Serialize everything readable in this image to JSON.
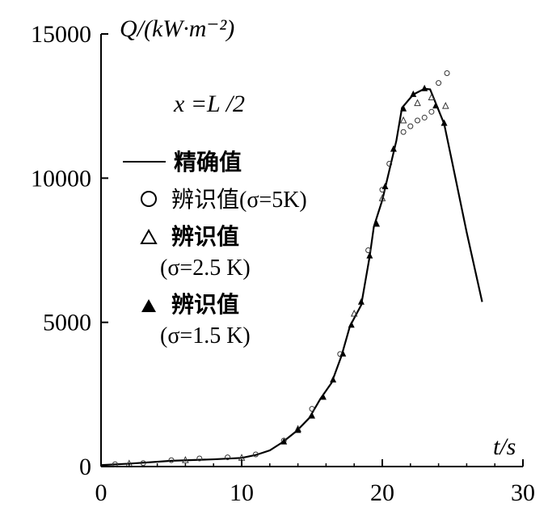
{
  "chart_data": {
    "type": "line",
    "ylabel": "Q/(kW·m⁻²)",
    "xlabel": "t/s",
    "annotation": "x =L /2",
    "xlim": [
      0,
      30
    ],
    "ylim": [
      0,
      15000
    ],
    "xticks": [
      "0",
      "10",
      "20",
      "30"
    ],
    "yticks": [
      "0",
      "5000",
      "10000",
      "15000"
    ],
    "grid": false,
    "legend_placement": "upper-left",
    "series": [
      {
        "name": "精确值",
        "marker": "line",
        "x": [
          0,
          2,
          5,
          8,
          10,
          11,
          12,
          12.9,
          13.9,
          14.8,
          15.6,
          16.4,
          17.1,
          17.7,
          18.5,
          19.1,
          19.4,
          20.0,
          21.0,
          21.4,
          22.2,
          23.0,
          23.4,
          24.4,
          25.0,
          26.0,
          27.1
        ],
        "y": [
          50,
          100,
          200,
          250,
          300,
          400,
          560,
          840,
          1230,
          1680,
          2350,
          2910,
          3840,
          4870,
          5600,
          7280,
          8320,
          9240,
          11300,
          12440,
          12900,
          13100,
          13080,
          11880,
          10480,
          8120,
          5710
        ]
      },
      {
        "name": "辨识值(σ=5K)",
        "marker": "circle",
        "x": [
          1,
          3,
          5,
          7,
          9,
          11,
          13,
          15,
          17,
          19,
          20,
          20.5,
          21.5,
          22,
          22.5,
          23,
          23.5,
          24,
          24.6
        ],
        "y": [
          80,
          120,
          220,
          280,
          320,
          420,
          900,
          2000,
          3900,
          7500,
          9600,
          10500,
          11600,
          11800,
          12000,
          12100,
          12300,
          13300,
          13640
        ]
      },
      {
        "name": "辨识值(σ=2.5 K)",
        "marker": "triangle-open",
        "x": [
          2,
          6,
          10,
          14,
          18,
          20,
          21.5,
          22.5,
          23.5,
          24.5
        ],
        "y": [
          100,
          220,
          300,
          1300,
          5300,
          9300,
          12000,
          12600,
          12800,
          12500
        ]
      },
      {
        "name": "辨识值(σ=1.5 K)",
        "marker": "triangle-filled",
        "x": [
          13,
          14,
          15,
          15.8,
          16.5,
          17.2,
          17.8,
          18.5,
          19.1,
          19.6,
          20.2,
          20.8,
          21.5,
          22.2,
          23.0,
          23.8,
          24.4
        ],
        "y": [
          850,
          1250,
          1750,
          2400,
          3000,
          3900,
          4900,
          5700,
          7300,
          8400,
          9700,
          11000,
          12400,
          12900,
          13100,
          12500,
          11900
        ]
      }
    ]
  }
}
